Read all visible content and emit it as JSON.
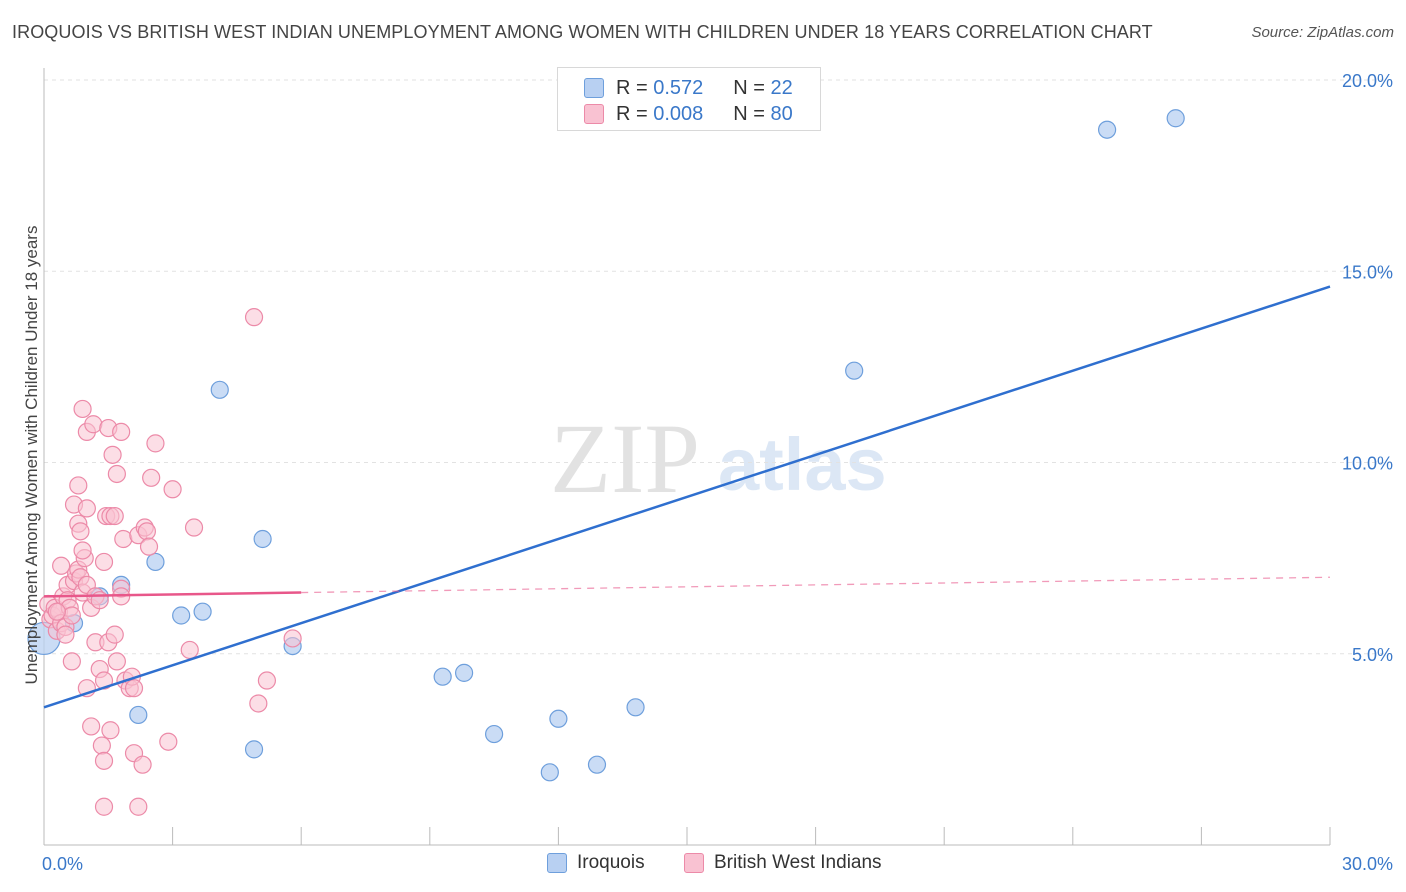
{
  "title": "IROQUOIS VS BRITISH WEST INDIAN UNEMPLOYMENT AMONG WOMEN WITH CHILDREN UNDER 18 YEARS CORRELATION CHART",
  "source": "Source: ZipAtlas.com",
  "watermark": {
    "zip": "ZIP",
    "atlas": "atlas"
  },
  "colors": {
    "iroquois_fill": "#b8d0f2",
    "iroquois_stroke": "#6e9fdc",
    "iroquois_line": "#2f6fcf",
    "bwi_fill": "#f9c2d2",
    "bwi_stroke": "#ec8aa8",
    "bwi_line": "#e8578a",
    "value_text": "#3a78c9",
    "grid": "#e2e2e2"
  },
  "legend_top": {
    "rows": [
      {
        "r_label": "R = ",
        "r_value": "0.572",
        "n_label": "N = ",
        "n_value": "22"
      },
      {
        "r_label": "R = ",
        "r_value": "0.008",
        "n_label": "N = ",
        "n_value": "80"
      }
    ]
  },
  "legend_bottom": {
    "iroquois": "Iroquois",
    "bwi": "British West Indians"
  },
  "chart_data": {
    "type": "scatter",
    "title": "IROQUOIS VS BRITISH WEST INDIAN UNEMPLOYMENT AMONG WOMEN WITH CHILDREN UNDER 18 YEARS CORRELATION CHART",
    "xlabel": "",
    "ylabel": "Unemployment Among Women with Children Under 18 years",
    "xlim": [
      0,
      30
    ],
    "ylim": [
      0,
      20
    ],
    "x_tick_labels": [
      "0.0%",
      "30.0%"
    ],
    "y_ticks": [
      5,
      10,
      15,
      20
    ],
    "y_tick_labels": [
      "5.0%",
      "10.0%",
      "15.0%",
      "20.0%"
    ],
    "grid": true,
    "series": [
      {
        "name": "Iroquois",
        "r": 0.572,
        "n": 22,
        "trend": {
          "x": [
            0,
            30
          ],
          "y": [
            3.6,
            14.6
          ]
        },
        "points": [
          [
            0,
            5.4
          ],
          [
            0.7,
            5.8
          ],
          [
            1.3,
            6.5
          ],
          [
            1.8,
            6.8
          ],
          [
            2.2,
            3.4
          ],
          [
            2.6,
            7.4
          ],
          [
            3.2,
            6.0
          ],
          [
            3.7,
            6.1
          ],
          [
            4.1,
            11.9
          ],
          [
            4.9,
            2.5
          ],
          [
            5.1,
            8.0
          ],
          [
            5.8,
            5.2
          ],
          [
            9.3,
            4.4
          ],
          [
            9.8,
            4.5
          ],
          [
            10.5,
            2.9
          ],
          [
            11.8,
            1.9
          ],
          [
            12.0,
            3.3
          ],
          [
            12.9,
            2.1
          ],
          [
            13.8,
            3.6
          ],
          [
            18.9,
            12.4
          ],
          [
            24.8,
            18.7
          ],
          [
            26.4,
            19.0
          ]
        ]
      },
      {
        "name": "British West Indians",
        "r": 0.008,
        "n": 80,
        "trend": {
          "x": [
            0,
            6
          ],
          "y": [
            6.5,
            6.6
          ],
          "dashed_to": {
            "x": 30,
            "y": 7.0
          }
        },
        "points": [
          [
            0.1,
            6.3
          ],
          [
            0.15,
            5.9
          ],
          [
            0.2,
            6.0
          ],
          [
            0.25,
            6.2
          ],
          [
            0.3,
            5.6
          ],
          [
            0.35,
            6.1
          ],
          [
            0.4,
            5.8
          ],
          [
            0.4,
            7.3
          ],
          [
            0.45,
            6.5
          ],
          [
            0.5,
            5.7
          ],
          [
            0.55,
            6.8
          ],
          [
            0.55,
            6.4
          ],
          [
            0.6,
            6.2
          ],
          [
            0.65,
            6.0
          ],
          [
            0.65,
            4.8
          ],
          [
            0.7,
            6.9
          ],
          [
            0.75,
            7.1
          ],
          [
            0.8,
            7.2
          ],
          [
            0.85,
            7.0
          ],
          [
            0.9,
            6.6
          ],
          [
            0.95,
            7.5
          ],
          [
            1.0,
            6.8
          ],
          [
            0.7,
            8.9
          ],
          [
            0.8,
            9.4
          ],
          [
            0.8,
            8.4
          ],
          [
            0.9,
            7.7
          ],
          [
            0.85,
            8.2
          ],
          [
            0.9,
            11.4
          ],
          [
            1.0,
            8.8
          ],
          [
            1.0,
            10.8
          ],
          [
            1.1,
            6.2
          ],
          [
            1.15,
            11.0
          ],
          [
            1.2,
            6.5
          ],
          [
            1.3,
            6.4
          ],
          [
            1.4,
            7.4
          ],
          [
            1.45,
            8.6
          ],
          [
            1.5,
            10.9
          ],
          [
            1.55,
            8.6
          ],
          [
            1.6,
            10.2
          ],
          [
            1.65,
            8.6
          ],
          [
            1.7,
            9.7
          ],
          [
            1.8,
            10.8
          ],
          [
            1.85,
            8.0
          ],
          [
            2.2,
            8.1
          ],
          [
            2.35,
            8.3
          ],
          [
            2.4,
            8.2
          ],
          [
            2.45,
            7.8
          ],
          [
            2.5,
            9.6
          ],
          [
            2.6,
            10.5
          ],
          [
            3.0,
            9.3
          ],
          [
            3.5,
            8.3
          ],
          [
            1.0,
            4.1
          ],
          [
            1.1,
            3.1
          ],
          [
            1.2,
            5.3
          ],
          [
            1.3,
            4.6
          ],
          [
            1.4,
            4.3
          ],
          [
            1.35,
            2.6
          ],
          [
            1.4,
            2.2
          ],
          [
            1.5,
            5.3
          ],
          [
            1.55,
            3.0
          ],
          [
            1.65,
            5.5
          ],
          [
            1.7,
            4.8
          ],
          [
            1.8,
            6.7
          ],
          [
            1.8,
            6.5
          ],
          [
            1.9,
            4.3
          ],
          [
            2.0,
            4.1
          ],
          [
            2.05,
            4.4
          ],
          [
            2.1,
            4.1
          ],
          [
            2.1,
            2.4
          ],
          [
            2.3,
            2.1
          ],
          [
            2.9,
            2.7
          ],
          [
            3.4,
            5.1
          ],
          [
            1.4,
            1.0
          ],
          [
            2.2,
            1.0
          ],
          [
            4.9,
            13.8
          ],
          [
            5.0,
            3.7
          ],
          [
            5.2,
            4.3
          ],
          [
            5.8,
            5.4
          ],
          [
            0.3,
            6.1
          ],
          [
            0.5,
            5.5
          ]
        ]
      }
    ]
  }
}
